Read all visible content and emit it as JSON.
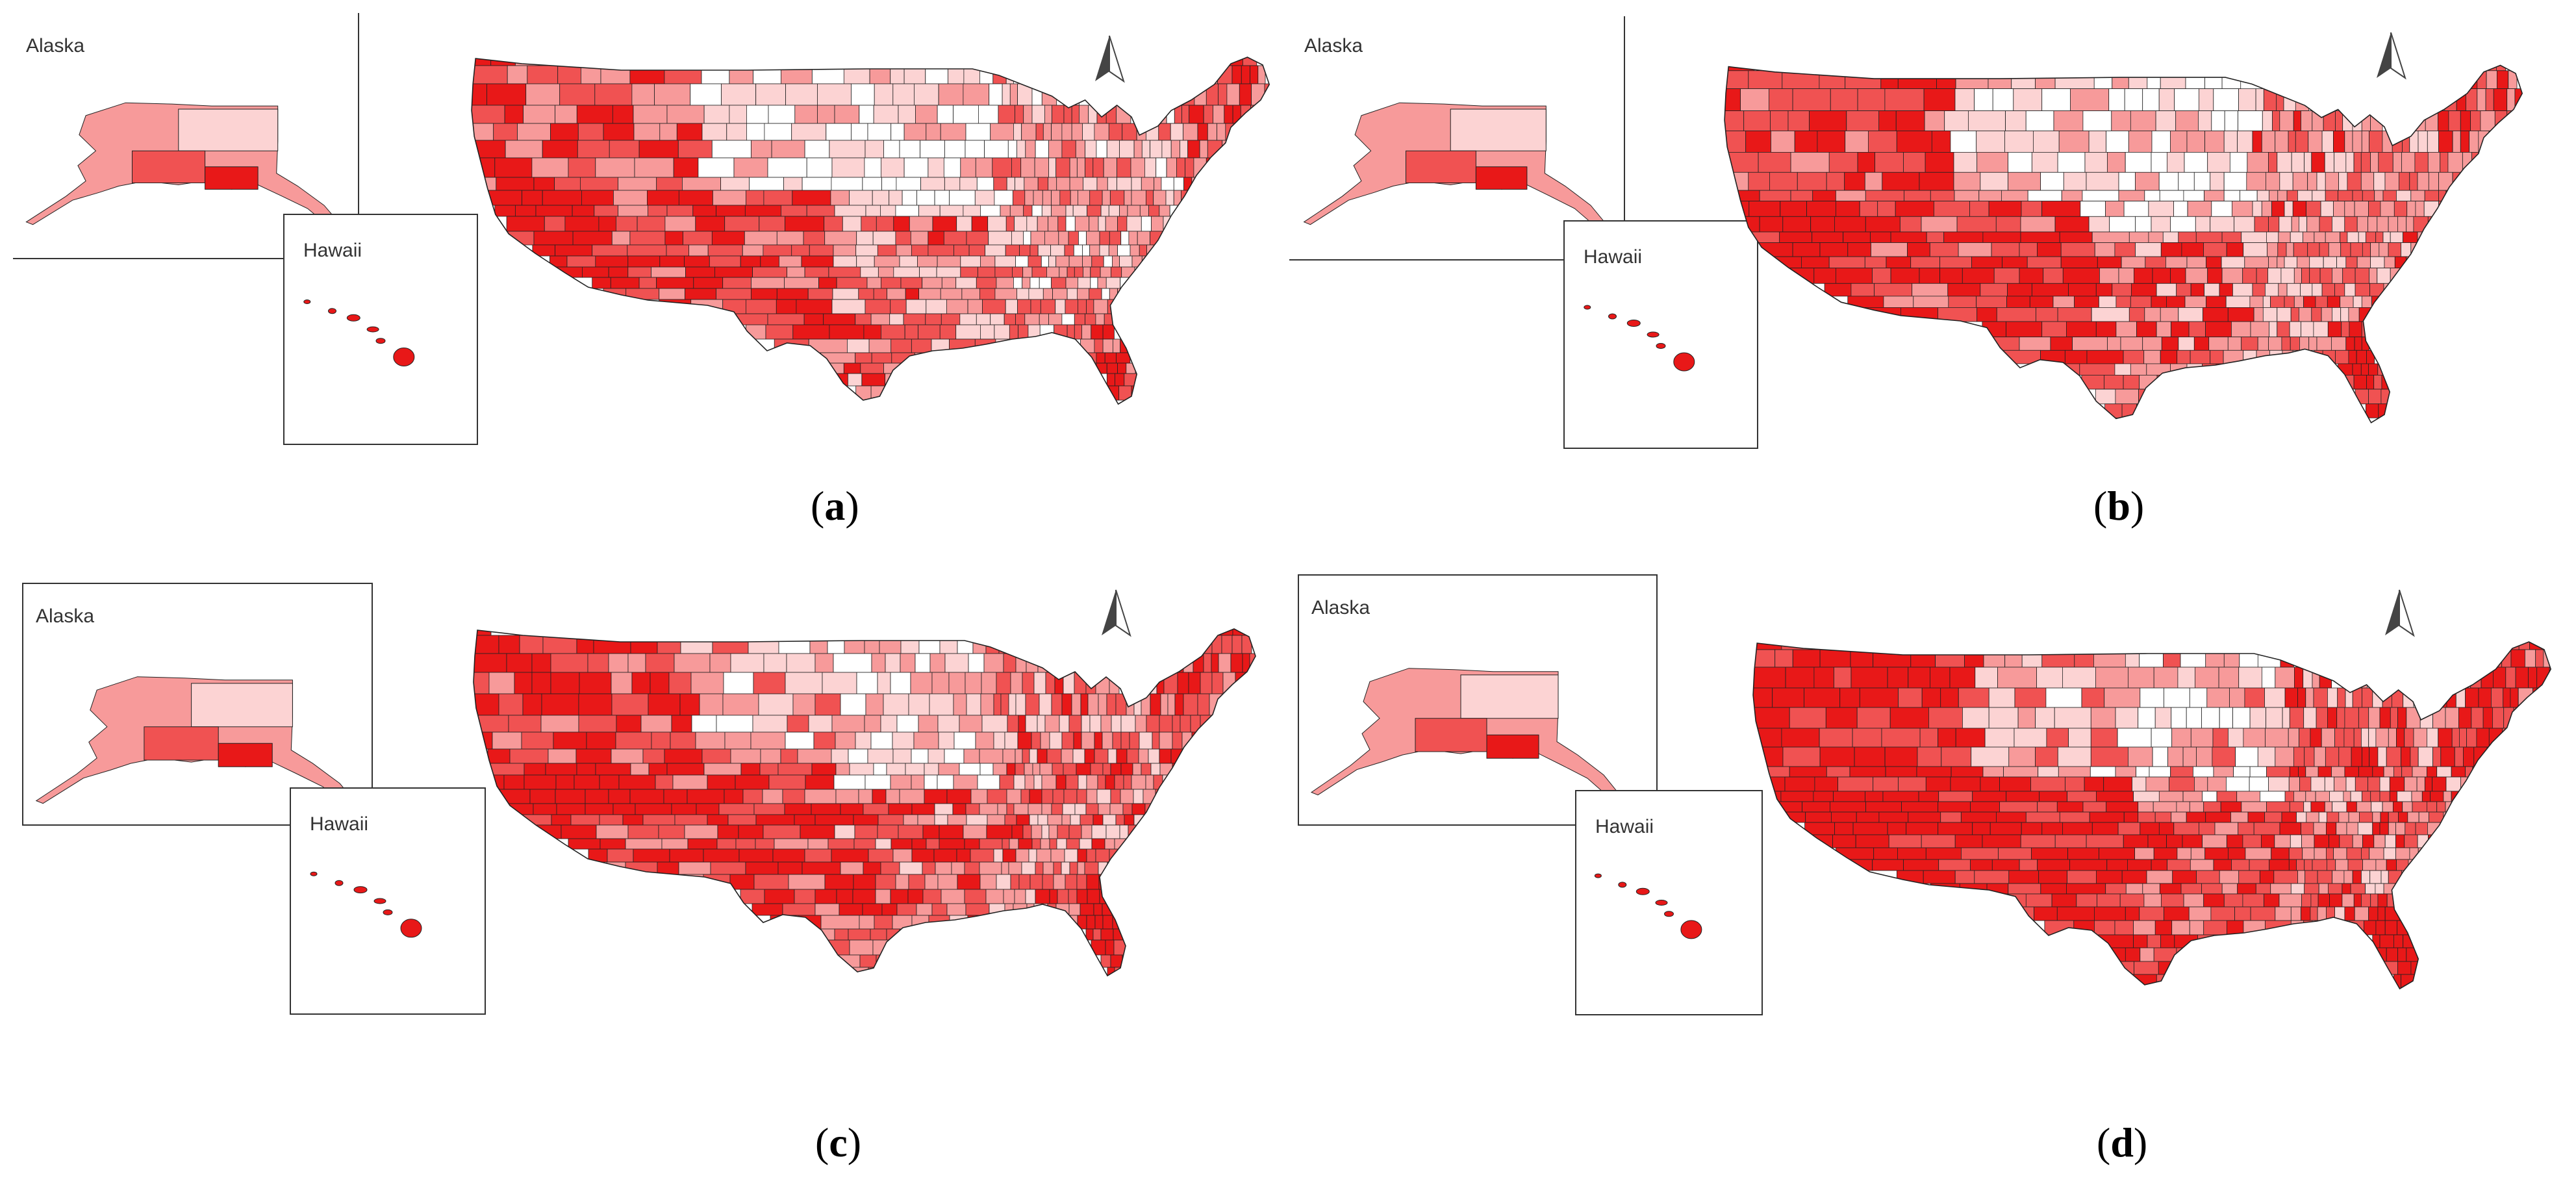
{
  "figure": {
    "panels": [
      {
        "id": "a",
        "caption": "a",
        "alaska_label": "Alaska",
        "hawaii_label": "Hawaii"
      },
      {
        "id": "b",
        "caption": "b",
        "alaska_label": "Alaska",
        "hawaii_label": "Hawaii"
      },
      {
        "id": "c",
        "caption": "c",
        "alaska_label": "Alaska",
        "hawaii_label": "Hawaii"
      },
      {
        "id": "d",
        "caption": "d",
        "alaska_label": "Alaska",
        "hawaii_label": "Hawaii"
      }
    ],
    "caption_open": "(",
    "caption_close": ")",
    "north_arrow": "north-arrow-icon",
    "colors": {
      "class_1": "#ffffff",
      "class_2": "#fcd3d3",
      "class_3": "#f79a9a",
      "class_4": "#f05252",
      "class_5": "#e81818",
      "boundary": "#222222",
      "frame": "#333333"
    }
  }
}
